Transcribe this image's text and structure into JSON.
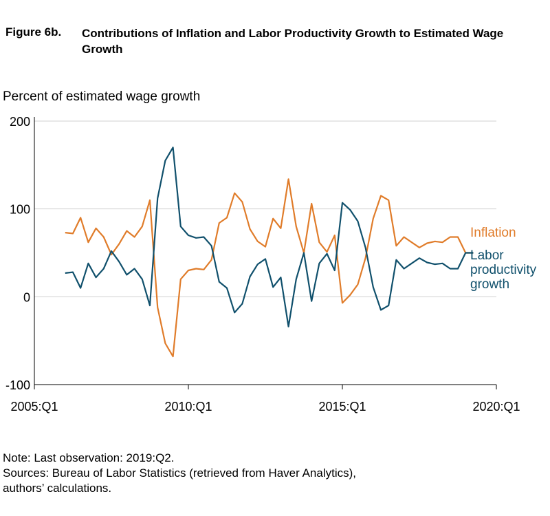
{
  "figure": {
    "label": "Figure 6b.",
    "title": "Contributions of Inflation and Labor Productivity Growth to Estimated Wage Growth",
    "ylabel": "Percent of estimated wage growth"
  },
  "notes": [
    "Note: Last observation: 2019:Q2.",
    "Sources: Bureau of Labor Statistics (retrieved from Haver Analytics),",
    "authors’ calculations."
  ],
  "chart_data": {
    "type": "line",
    "ylim": [
      -100,
      200
    ],
    "xlim": [
      2005.0,
      2020.0
    ],
    "y_ticks": [
      {
        "value": 200,
        "label": "200"
      },
      {
        "value": 100,
        "label": "100"
      },
      {
        "value": 0,
        "label": "0"
      },
      {
        "value": -100,
        "label": "-100"
      }
    ],
    "x_ticks": [
      {
        "value": 2005.0,
        "label": "2005:Q1"
      },
      {
        "value": 2010.0,
        "label": "2010:Q1"
      },
      {
        "value": 2015.0,
        "label": "2015:Q1"
      },
      {
        "value": 2020.0,
        "label": "2020:Q1"
      }
    ],
    "grid": "horizontal",
    "x": [
      2006.0,
      2006.25,
      2006.5,
      2006.75,
      2007.0,
      2007.25,
      2007.5,
      2007.75,
      2008.0,
      2008.25,
      2008.5,
      2008.75,
      2009.0,
      2009.25,
      2009.5,
      2009.75,
      2010.0,
      2010.25,
      2010.5,
      2010.75,
      2011.0,
      2011.25,
      2011.5,
      2011.75,
      2012.0,
      2012.25,
      2012.5,
      2012.75,
      2013.0,
      2013.25,
      2013.5,
      2013.75,
      2014.0,
      2014.25,
      2014.5,
      2014.75,
      2015.0,
      2015.25,
      2015.5,
      2015.75,
      2016.0,
      2016.25,
      2016.5,
      2016.75,
      2017.0,
      2017.25,
      2017.5,
      2017.75,
      2018.0,
      2018.25,
      2018.5,
      2018.75,
      2019.0,
      2019.25
    ],
    "series": [
      {
        "name": "Inflation",
        "color": "#e07c2a",
        "values": [
          73,
          72,
          90,
          62,
          78,
          68,
          48,
          60,
          75,
          68,
          80,
          110,
          -12,
          -53,
          -68,
          20,
          30,
          32,
          31,
          42,
          84,
          90,
          118,
          108,
          77,
          63,
          57,
          89,
          78,
          134,
          80,
          50,
          106,
          62,
          51,
          70,
          -7,
          2,
          14,
          44,
          89,
          115,
          110,
          58,
          68,
          62,
          56,
          61,
          63,
          62,
          68,
          68,
          50,
          50
        ]
      },
      {
        "name": "Labor productivity growth",
        "color": "#10506c",
        "values": [
          27,
          28,
          10,
          38,
          22,
          32,
          52,
          40,
          25,
          32,
          20,
          -10,
          112,
          155,
          170,
          80,
          70,
          67,
          68,
          58,
          17,
          10,
          -18,
          -8,
          23,
          37,
          43,
          11,
          22,
          -34,
          20,
          50,
          -5,
          38,
          49,
          30,
          107,
          99,
          86,
          56,
          11,
          -15,
          -10,
          42,
          32,
          38,
          44,
          39,
          37,
          38,
          32,
          32,
          50,
          50
        ]
      }
    ]
  }
}
